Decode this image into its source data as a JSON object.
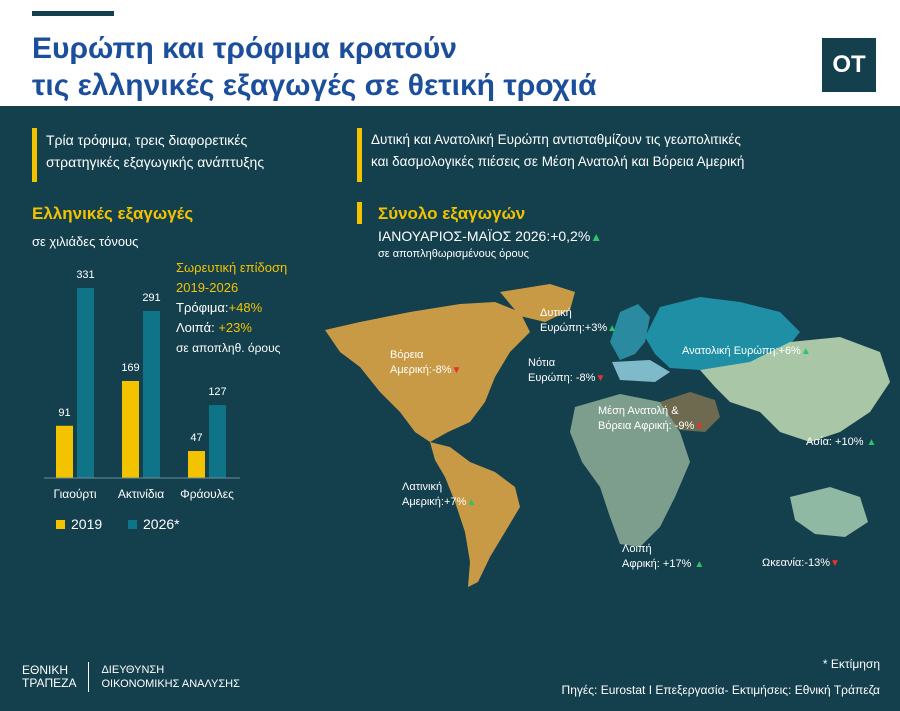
{
  "header": {
    "title_line1": "Ευρώπη και τρόφιμα κρατούν",
    "title_line2": "τις ελληνικές εξαγωγές σε θετική τροχιά",
    "logo": "OT"
  },
  "left": {
    "intro_line1": "Τρία τρόφιμα, τρεις διαφορετικές",
    "intro_line2": "στρατηγικές εξαγωγικής ανάπτυξης",
    "chart_title": "Ελληνικές εξαγωγές",
    "chart_subtitle": "σε χιλιάδες τόνους",
    "performance": {
      "title_line1": "Σωρευτική επίδοση",
      "title_line2": "2019-2026",
      "food_label": "Τρόφιμα:",
      "food_value": "+48%",
      "other_label": "Λοιπά:",
      "other_value": "+23%",
      "note": "σε αποπληθ. όρους"
    }
  },
  "right": {
    "intro_line1": "Δυτική και Ανατολική Ευρώπη αντισταθμίζουν τις  γεωπολιτικές",
    "intro_line2": "και δασμολογικές πιέσεις σε Μέση Ανατολή και Βόρεια Αμερική",
    "total_title": "Σύνολο εξαγωγών",
    "total_value": "ΙΑΝΟΥΑΡΙΟΣ-ΜΑΪΟΣ 2026:+0,2%",
    "total_note": "σε αποπληθωρισμένους όρους"
  },
  "map_regions": {
    "north_america": {
      "line1": "Βόρεια",
      "line2": "Αμερική:-8%",
      "trend": "down"
    },
    "latin_america": {
      "line1": "Λατινική",
      "line2": "Αμερική:+7%",
      "trend": "up"
    },
    "west_europe": {
      "line1": "Δυτική",
      "line2": "Ευρώπη:+3%",
      "trend": "up"
    },
    "south_europe": {
      "line1": "Νότια",
      "line2": "Ευρώπη: -8%",
      "trend": "down"
    },
    "east_europe": {
      "line1": "Ανατολική Ευρώπη:+6%",
      "trend": "up"
    },
    "middle_east": {
      "line1": "Μέση Ανατολή &",
      "line2": "Βόρεια Αφρική: -9%",
      "trend": "down"
    },
    "asia": {
      "line1": "Ασία: +10%",
      "trend": "up"
    },
    "africa": {
      "line1": "Λοιπή",
      "line2": "Αφρική:  +17%",
      "trend": "up"
    },
    "oceania": {
      "line1": "Ωκεανία:-13%",
      "trend": "down"
    }
  },
  "colors": {
    "background": "#143f4d",
    "accent": "#f3c300",
    "title_blue": "#1b4f9c",
    "series_2019": "#f3c300",
    "series_2026": "#0f7487",
    "up": "#2fc26a",
    "down": "#e5322b"
  },
  "footer": {
    "bank_line1": "ΕΘΝΙΚΗ",
    "bank_line2": "ΤΡΑΠΕΖΑ",
    "dept_line1": "ΔΙΕΥΘΥΝΣΗ",
    "dept_line2": "ΟΙΚΟΝΟΜΙΚΗΣ ΑΝΑΛΥΣΗΣ",
    "estimate_note": "* Εκτίμηση",
    "sources": "Πηγές: Eurostat I Επεξεργασία- Εκτιμήσεις: Εθνική Τράπεζα"
  },
  "chart_data": {
    "type": "bar",
    "categories": [
      "Γιαούρτι",
      "Ακτινίδια",
      "Φράουλες"
    ],
    "series": [
      {
        "name": "2019",
        "values": [
          91,
          169,
          47
        ]
      },
      {
        "name": "2026*",
        "values": [
          331,
          291,
          127
        ]
      }
    ],
    "title": "Ελληνικές εξαγωγές",
    "ylabel": "σε χιλιάδες τόνους",
    "ylim": [
      0,
      331
    ],
    "grid": false,
    "legend": "bottom"
  }
}
